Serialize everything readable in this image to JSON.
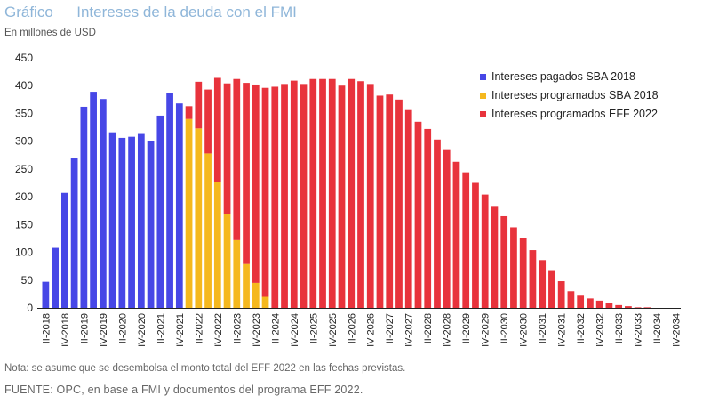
{
  "header": {
    "tag": "Gráfico",
    "title": "Intereses de la deuda con el FMI",
    "subtitle": "En millones de USD"
  },
  "footer": {
    "note": "Nota: se asume que se desembolsa el monto total del EFF 2022 en las fechas previstas.",
    "source": "FUENTE: OPC, en base a FMI y documentos del programa EFF 2022."
  },
  "chart_data": {
    "type": "bar",
    "stacked": true,
    "title": "Intereses de la deuda con el FMI",
    "ylabel": "En millones de USD",
    "ylim": [
      0,
      450
    ],
    "yticks": [
      0,
      50,
      100,
      150,
      200,
      250,
      300,
      350,
      400,
      450
    ],
    "legend_position": "top-right",
    "grid": false,
    "categories": [
      "II-2018",
      "III-2018",
      "IV-2018",
      "I-2019",
      "II-2019",
      "III-2019",
      "IV-2019",
      "I-2020",
      "II-2020",
      "III-2020",
      "IV-2020",
      "I-2021",
      "II-2021",
      "III-2021",
      "IV-2021",
      "I-2022",
      "II-2022",
      "III-2022",
      "IV-2022",
      "I-2023",
      "II-2023",
      "III-2023",
      "IV-2023",
      "I-2024",
      "II-2024",
      "III-2024",
      "IV-2024",
      "I-2025",
      "II-2025",
      "III-2025",
      "IV-2025",
      "I-2026",
      "II-2026",
      "III-2026",
      "IV-2026",
      "I-2027",
      "II-2027",
      "III-2027",
      "IV-2027",
      "I-2028",
      "II-2028",
      "III-2028",
      "IV-2028",
      "I-2029",
      "II-2029",
      "III-2029",
      "IV-2029",
      "I-2030",
      "II-2030",
      "III-2030",
      "IV-2030",
      "I-2031",
      "II-2031",
      "III-2031",
      "IV-2031",
      "I-2032",
      "II-2032",
      "III-2032",
      "IV-2032",
      "I-2033",
      "II-2033",
      "III-2033",
      "IV-2033",
      "I-2034",
      "II-2034",
      "III-2034",
      "IV-2034"
    ],
    "xtick_labels": [
      "II-2018",
      "IV-2018",
      "II-2019",
      "IV-2019",
      "II-2020",
      "IV-2020",
      "II-2021",
      "IV-2021",
      "II-2022",
      "IV-2022",
      "II-2023",
      "IV-2023",
      "II-2024",
      "IV-2024",
      "II-2025",
      "IV-2025",
      "II-2026",
      "IV-2026",
      "II-2027",
      "IV-2027",
      "II-2028",
      "IV-2028",
      "II-2029",
      "IV-2029",
      "II-2030",
      "IV-2030",
      "II-2031",
      "IV-2031",
      "II-2032",
      "IV-2032",
      "II-2033",
      "IV-2033",
      "II-2034",
      "IV-2034"
    ],
    "series": [
      {
        "name": "Intereses pagados SBA 2018",
        "color": "#4747e6",
        "values": [
          47,
          108,
          207,
          269,
          362,
          389,
          376,
          316,
          306,
          308,
          313,
          300,
          346,
          386,
          368,
          0,
          0,
          0,
          0,
          0,
          0,
          0,
          0,
          0,
          0,
          0,
          0,
          0,
          0,
          0,
          0,
          0,
          0,
          0,
          0,
          0,
          0,
          0,
          0,
          0,
          0,
          0,
          0,
          0,
          0,
          0,
          0,
          0,
          0,
          0,
          0,
          0,
          0,
          0,
          0,
          0,
          0,
          0,
          0,
          0,
          0,
          0,
          0,
          0,
          0,
          0,
          0
        ]
      },
      {
        "name": "Intereses programados SBA 2018",
        "color": "#f5b81e",
        "values": [
          0,
          0,
          0,
          0,
          0,
          0,
          0,
          0,
          0,
          0,
          0,
          0,
          0,
          0,
          0,
          340,
          323,
          278,
          227,
          169,
          122,
          79,
          45,
          20,
          0,
          0,
          0,
          0,
          0,
          0,
          0,
          0,
          0,
          0,
          0,
          0,
          0,
          0,
          0,
          0,
          0,
          0,
          0,
          0,
          0,
          0,
          0,
          0,
          0,
          0,
          0,
          0,
          0,
          0,
          0,
          0,
          0,
          0,
          0,
          0,
          0,
          0,
          0,
          0,
          0,
          0,
          0
        ]
      },
      {
        "name": "Intereses programados EFF 2022",
        "color": "#e8333c",
        "values": [
          0,
          0,
          0,
          0,
          0,
          0,
          0,
          0,
          0,
          0,
          0,
          0,
          0,
          0,
          0,
          23,
          84,
          115,
          187,
          235,
          290,
          326,
          357,
          376,
          398,
          403,
          409,
          403,
          412,
          412,
          412,
          400,
          412,
          408,
          403,
          382,
          384,
          375,
          356,
          335,
          322,
          303,
          284,
          263,
          244,
          225,
          204,
          182,
          165,
          145,
          125,
          104,
          86,
          68,
          48,
          30,
          22,
          17,
          13,
          9,
          5,
          3,
          1,
          1,
          0,
          0,
          0
        ]
      }
    ]
  }
}
